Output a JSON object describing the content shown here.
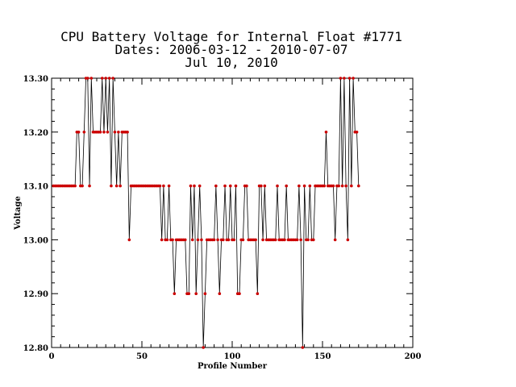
{
  "chart_data": {
    "type": "line",
    "title_lines": [
      "CPU Battery Voltage for Internal Float #1771",
      "Dates:  2006-03-12 -  2010-07-07",
      "Jul 10, 2010"
    ],
    "xlabel": "Profile Number",
    "ylabel": "Voltage",
    "xlim": [
      0,
      200
    ],
    "ylim": [
      12.8,
      13.3
    ],
    "x_ticks": [
      "0",
      "50",
      "100",
      "150",
      "200"
    ],
    "y_ticks": [
      "12.80",
      "12.90",
      "13.00",
      "13.10",
      "13.20",
      "13.30"
    ],
    "grid": false,
    "colors": {
      "line": "#000000",
      "marker": "#cc0000"
    },
    "series": [
      {
        "start_x": 1,
        "values": [
          13.1,
          13.1,
          13.1,
          13.1,
          13.1,
          13.1,
          13.1,
          13.1,
          13.1,
          13.1,
          13.1,
          13.1,
          13.1,
          13.2,
          13.2,
          13.1,
          13.1,
          13.2,
          13.3,
          13.3,
          13.1,
          13.3,
          13.2,
          13.2,
          13.2,
          13.2,
          13.2,
          13.3,
          13.2,
          13.3,
          13.2,
          13.3,
          13.1,
          13.3,
          13.2,
          13.1,
          13.2,
          13.1,
          13.2,
          13.2,
          13.2,
          13.2,
          13.0,
          13.1,
          13.1,
          13.1,
          13.1,
          13.1,
          13.1,
          13.1,
          13.1,
          13.1,
          13.1,
          13.1,
          13.1,
          13.1,
          13.1,
          13.1,
          13.1,
          13.1,
          13.0,
          13.1,
          13.0,
          13.0,
          13.1,
          13.0,
          13.0,
          12.9,
          13.0,
          13.0,
          13.0,
          13.0,
          13.0,
          13.0,
          12.9,
          12.9,
          13.1,
          13.0,
          13.1,
          12.9,
          13.0,
          13.1,
          13.0,
          12.8,
          12.9,
          13.0,
          13.0,
          13.0,
          13.0,
          13.0,
          13.1,
          13.0,
          12.9,
          13.0,
          13.0,
          13.1,
          13.0,
          13.0,
          13.1,
          13.0,
          13.0,
          13.1,
          12.9,
          12.9,
          13.0,
          13.0,
          13.1,
          13.1,
          13.0,
          13.0,
          13.0,
          13.0,
          13.0,
          12.9,
          13.1,
          13.1,
          13.0,
          13.1,
          13.0,
          13.0,
          13.0,
          13.0,
          13.0,
          13.0,
          13.1,
          13.0,
          13.0,
          13.0,
          13.0,
          13.1,
          13.0,
          13.0,
          13.0,
          13.0,
          13.0,
          13.0,
          13.1,
          13.0,
          12.8,
          13.1,
          13.0,
          13.0,
          13.1,
          13.0,
          13.0,
          13.1,
          13.1,
          13.1,
          13.1,
          13.1,
          13.1,
          13.2,
          13.1,
          13.1,
          13.1,
          13.1,
          13.0,
          13.1,
          13.1,
          13.3,
          13.1,
          13.3,
          13.1,
          13.0,
          13.3,
          13.1,
          13.3,
          13.2,
          13.2,
          13.1
        ]
      }
    ]
  }
}
